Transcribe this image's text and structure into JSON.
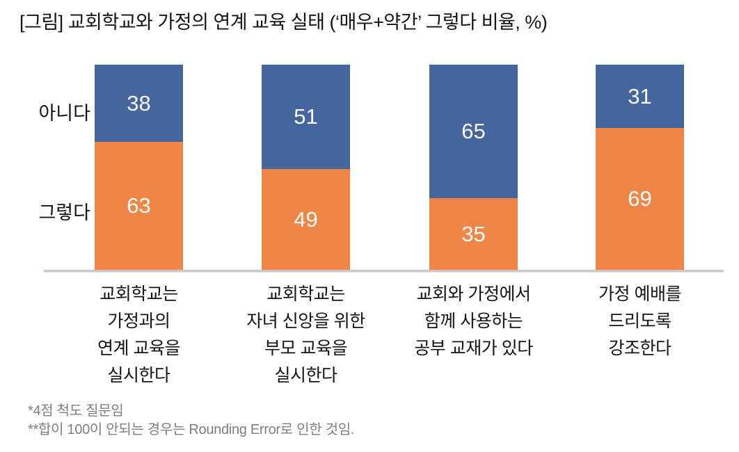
{
  "title": "[그림] 교회학교와 가정의 연계 교육 실태 (‘매우+약간’ 그렇다 비율, %)",
  "row_labels": [
    "아니다",
    "그렇다"
  ],
  "footnotes": [
    "*4점 척도 질문임",
    "**합이 100이 안되는 경우는 Rounding Error로 인한 것임."
  ],
  "colors": {
    "agree_bar": "#F08548",
    "disagree_bar": "#44659E",
    "value_label": "#FFFFFF",
    "axis_line": "#C9C9C9",
    "footnote_text": "#7F7F7F",
    "label_text": "#141414"
  },
  "chart_data": {
    "type": "bar",
    "variant": "stacked-100-percent-column",
    "unit": "%",
    "title": "교회학교와 가정의 연계 교육 실태 (‘매우+약간’ 그렇다 비율, %)",
    "categories": [
      [
        "교회학교는",
        "가정과의",
        "연계 교육을",
        "실시한다"
      ],
      [
        "교회학교는",
        "자녀 신앙을 위한",
        "부모 교육을",
        "실시한다"
      ],
      [
        "교회와 가정에서",
        "함께 사용하는",
        "공부 교재가 있다"
      ],
      [
        "가정 예배를",
        "드리도록",
        "강조한다"
      ]
    ],
    "series": [
      {
        "name": "그렇다",
        "position": "bottom",
        "color": "#F08548",
        "values": [
          63,
          49,
          35,
          69
        ]
      },
      {
        "name": "아니다",
        "position": "top",
        "color": "#44659E",
        "values": [
          38,
          51,
          65,
          31
        ]
      }
    ],
    "ylim": [
      0,
      100
    ],
    "grid": false,
    "legend_position": "row labels at left of first bar",
    "value_labels_shown": true,
    "notes": [
      "*4점 척도 질문임",
      "**합이 100이 안되는 경우는 Rounding Error로 인한 것임."
    ]
  }
}
